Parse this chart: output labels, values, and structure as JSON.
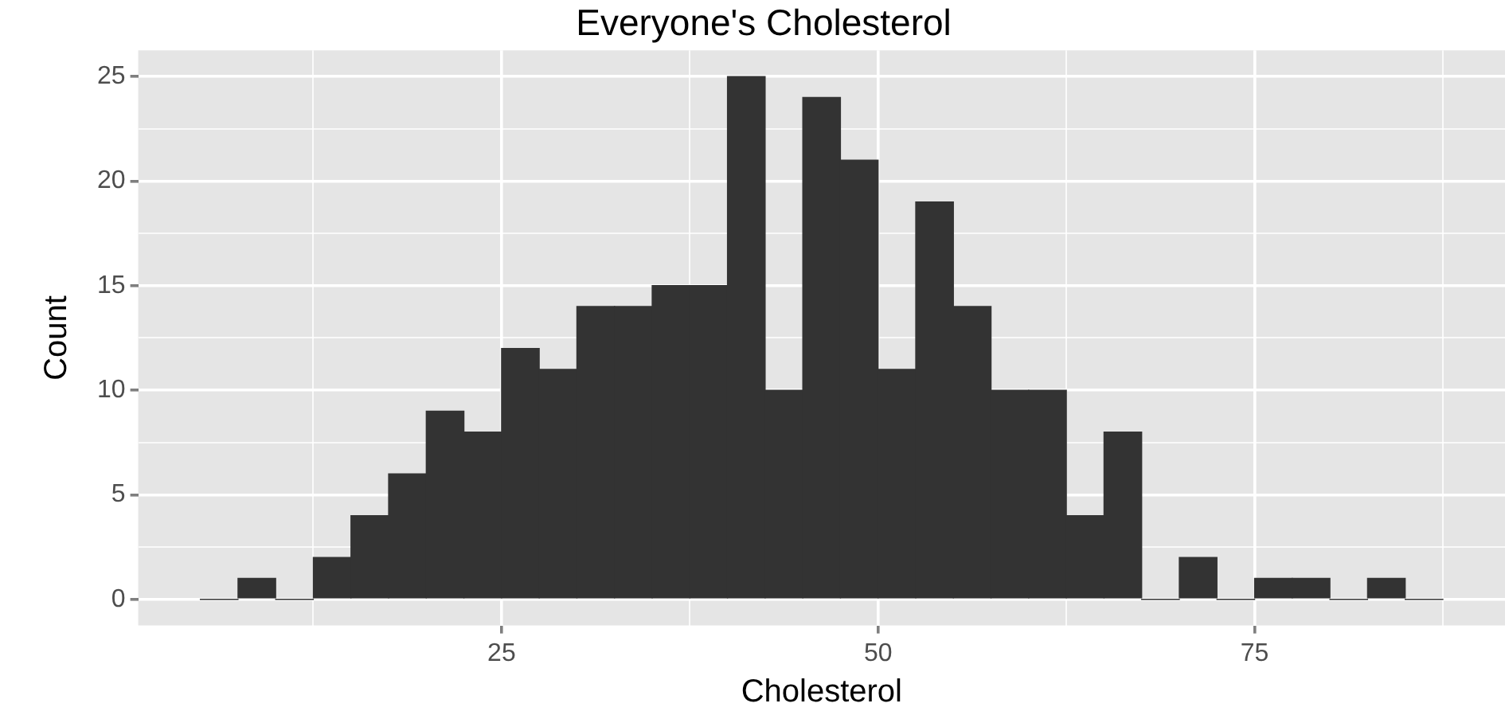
{
  "chart_data": {
    "type": "histogram",
    "title": "Everyone's Cholesterol",
    "xlabel": "Cholesterol",
    "ylabel": "Count",
    "bins": [
      5,
      7.5,
      10,
      12.5,
      15,
      17.5,
      20,
      22.5,
      25,
      27.5,
      30,
      32.5,
      35,
      37.5,
      40,
      42.5,
      45,
      47.5,
      50,
      52.5,
      55,
      57.5,
      60,
      62.5,
      65,
      67.5,
      70,
      72.5,
      75,
      77.5,
      80,
      82.5,
      85,
      87.5
    ],
    "values": [
      0,
      1,
      0,
      2,
      4,
      6,
      9,
      8,
      12,
      11,
      14,
      14,
      15,
      15,
      25,
      10,
      24,
      21,
      11,
      19,
      14,
      10,
      10,
      4,
      8,
      0,
      2,
      0,
      1,
      1,
      0,
      1,
      0
    ],
    "color": "#333333",
    "xlim": [
      0.875,
      91.625
    ],
    "xticks": [
      {
        "value": 12.5,
        "label": null
      },
      25,
      {
        "value": 37.5,
        "label": null
      },
      50,
      {
        "value": 62.5,
        "label": null
      },
      75,
      {
        "value": 87.5,
        "label": null
      }
    ],
    "ylim": [
      -1.25,
      26.25
    ],
    "yticks": [
      0,
      {
        "value": 2.5,
        "label": null
      },
      5,
      {
        "value": 7.5,
        "label": null
      },
      10,
      {
        "value": 12.5,
        "label": null
      },
      15,
      {
        "value": 17.5,
        "label": null
      },
      20,
      {
        "value": 22.5,
        "label": null
      },
      25
    ],
    "grid": true
  }
}
